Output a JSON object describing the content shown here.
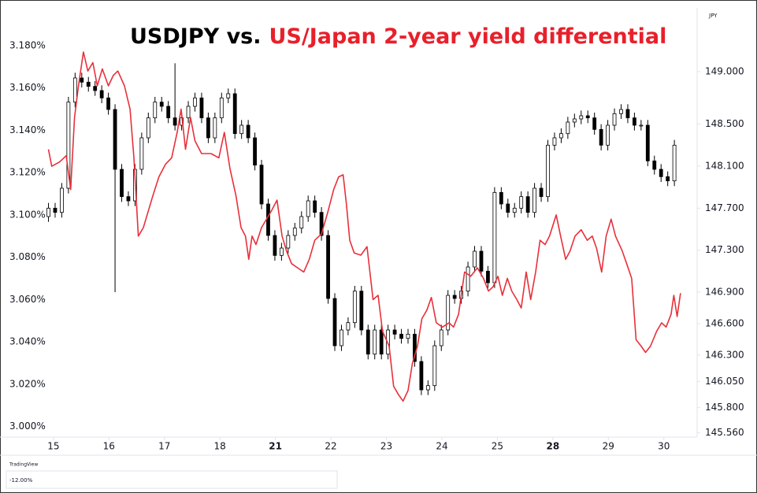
{
  "chart_data": {
    "type": "candlestick",
    "title_parts": [
      {
        "text": "USDJPY vs.",
        "color": "#000000"
      },
      {
        "text": "US/Japan 2-year yield differential",
        "color": "#e8202a"
      }
    ],
    "y2_unit": "JPY",
    "xlim": [
      -0.14,
      11.6
    ],
    "xticks": [
      {
        "value": 0,
        "label": "15"
      },
      {
        "value": 1,
        "label": "16"
      },
      {
        "value": 2,
        "label": "17"
      },
      {
        "value": 3,
        "label": "18"
      },
      {
        "value": 4,
        "label": "21",
        "bold": true
      },
      {
        "value": 5,
        "label": "22"
      },
      {
        "value": 6,
        "label": "23"
      },
      {
        "value": 7,
        "label": "24"
      },
      {
        "value": 8,
        "label": "25"
      },
      {
        "value": 9,
        "label": "28",
        "bold": true
      },
      {
        "value": 10,
        "label": "29"
      },
      {
        "value": 11,
        "label": "30"
      }
    ],
    "ylim": [
      2.995,
      3.196
    ],
    "yticks": [
      {
        "value": 3.0,
        "label": "3.000%"
      },
      {
        "value": 3.02,
        "label": "3.020%"
      },
      {
        "value": 3.04,
        "label": "3.040%"
      },
      {
        "value": 3.06,
        "label": "3.060%"
      },
      {
        "value": 3.08,
        "label": "3.080%"
      },
      {
        "value": 3.1,
        "label": "3.100%"
      },
      {
        "value": 3.12,
        "label": "3.120%"
      },
      {
        "value": 3.14,
        "label": "3.140%"
      },
      {
        "value": 3.16,
        "label": "3.160%"
      },
      {
        "value": 3.18,
        "label": "3.180%"
      }
    ],
    "y2lim": [
      145.52,
      149.57
    ],
    "y2ticks": [
      {
        "value": 145.56,
        "label": "145.560"
      },
      {
        "value": 145.8,
        "label": "145.800"
      },
      {
        "value": 146.05,
        "label": "146.050"
      },
      {
        "value": 146.3,
        "label": "146.300"
      },
      {
        "value": 146.6,
        "label": "146.600"
      },
      {
        "value": 146.9,
        "label": "146.900"
      },
      {
        "value": 147.3,
        "label": "147.300"
      },
      {
        "value": 147.7,
        "label": "147.700"
      },
      {
        "value": 148.1,
        "label": "148.100"
      },
      {
        "value": 148.5,
        "label": "148.500"
      },
      {
        "value": 149.0,
        "label": "149.000"
      }
    ],
    "series": [
      {
        "type": "candlestick",
        "axis": "y2",
        "up_color": "#ffffff",
        "down_color": "#000000",
        "edge_color": "#000000",
        "x": [
          -0.09,
          0.03,
          0.15,
          0.27,
          0.39,
          0.51,
          0.63,
          0.75,
          0.87,
          0.99,
          1.11,
          1.23,
          1.35,
          1.47,
          1.59,
          1.71,
          1.83,
          1.95,
          2.07,
          2.19,
          2.31,
          2.43,
          2.55,
          2.67,
          2.79,
          2.91,
          3.03,
          3.15,
          3.27,
          3.39,
          3.51,
          3.63,
          3.75,
          3.87,
          3.99,
          4.11,
          4.23,
          4.35,
          4.47,
          4.59,
          4.71,
          4.83,
          4.95,
          5.07,
          5.19,
          5.31,
          5.43,
          5.55,
          5.67,
          5.79,
          5.91,
          6.03,
          6.15,
          6.27,
          6.39,
          6.51,
          6.63,
          6.75,
          6.87,
          6.99,
          7.11,
          7.23,
          7.35,
          7.47,
          7.59,
          7.71,
          7.83,
          7.95,
          8.07,
          8.19,
          8.31,
          8.43,
          8.55,
          8.67,
          8.79,
          8.91,
          9.03,
          9.15,
          9.27,
          9.39,
          9.51,
          9.63,
          9.75,
          9.87,
          9.99,
          10.11,
          10.23,
          10.35,
          10.47,
          10.59,
          10.71,
          10.83,
          10.95,
          11.07,
          11.19
        ],
        "open": [
          147.62,
          147.7,
          147.66,
          147.89,
          148.71,
          148.94,
          148.9,
          148.86,
          148.82,
          148.75,
          148.64,
          148.07,
          147.81,
          147.77,
          148.07,
          148.37,
          148.56,
          148.71,
          148.67,
          148.56,
          148.49,
          148.56,
          148.67,
          148.75,
          148.56,
          148.37,
          148.56,
          148.75,
          148.79,
          148.41,
          148.49,
          148.37,
          148.11,
          147.74,
          147.44,
          147.25,
          147.32,
          147.44,
          147.51,
          147.62,
          147.77,
          147.66,
          147.44,
          146.84,
          146.39,
          146.54,
          146.61,
          146.91,
          146.54,
          146.31,
          146.54,
          146.31,
          146.54,
          146.5,
          146.46,
          146.5,
          146.24,
          145.97,
          146.01,
          146.39,
          146.54,
          146.87,
          146.84,
          146.91,
          147.14,
          147.29,
          147.1,
          146.99,
          147.85,
          147.74,
          147.66,
          147.7,
          147.81,
          147.66,
          147.89,
          147.81,
          148.3,
          148.37,
          148.41,
          148.52,
          148.55,
          148.58,
          148.56,
          148.45,
          148.3,
          148.49,
          148.6,
          148.64,
          148.56,
          148.49,
          148.49,
          148.15,
          148.07,
          148.0,
          147.96
        ],
        "high": [
          147.75,
          147.75,
          147.94,
          148.76,
          148.99,
          148.99,
          148.95,
          148.91,
          148.87,
          148.8,
          148.69,
          148.12,
          147.86,
          148.12,
          148.42,
          148.61,
          148.76,
          148.76,
          148.72,
          149.08,
          148.61,
          148.72,
          148.8,
          148.8,
          148.61,
          148.61,
          148.8,
          148.84,
          148.84,
          148.54,
          148.54,
          148.42,
          148.16,
          147.79,
          147.49,
          147.37,
          147.49,
          147.56,
          147.67,
          147.82,
          147.82,
          147.71,
          147.49,
          146.89,
          146.59,
          146.66,
          146.96,
          146.96,
          146.59,
          146.59,
          146.59,
          146.59,
          146.59,
          146.55,
          146.55,
          146.55,
          146.29,
          146.06,
          146.44,
          146.59,
          146.92,
          146.92,
          146.96,
          147.19,
          147.34,
          147.34,
          147.15,
          147.9,
          147.9,
          147.79,
          147.75,
          147.86,
          147.86,
          147.94,
          147.94,
          148.35,
          148.42,
          148.46,
          148.57,
          148.6,
          148.63,
          148.63,
          148.61,
          148.5,
          148.54,
          148.65,
          148.69,
          148.69,
          148.61,
          148.54,
          148.54,
          148.2,
          148.12,
          148.05,
          148.35
        ],
        "low": [
          147.57,
          147.61,
          147.61,
          147.84,
          148.66,
          148.85,
          148.81,
          148.77,
          148.7,
          148.59,
          146.9,
          147.76,
          147.72,
          147.72,
          148.02,
          148.32,
          148.51,
          148.62,
          148.51,
          148.44,
          148.44,
          148.51,
          148.62,
          148.51,
          148.32,
          148.32,
          148.51,
          148.7,
          148.36,
          148.36,
          148.32,
          148.06,
          147.69,
          147.39,
          147.2,
          147.2,
          147.27,
          147.39,
          147.46,
          147.57,
          147.61,
          147.39,
          146.79,
          146.34,
          146.34,
          146.49,
          146.56,
          146.49,
          146.26,
          146.26,
          146.26,
          146.26,
          146.45,
          146.41,
          146.41,
          146.19,
          145.92,
          145.92,
          145.96,
          146.34,
          146.49,
          146.79,
          146.79,
          146.86,
          147.09,
          147.05,
          146.94,
          146.94,
          147.69,
          147.61,
          147.61,
          147.65,
          147.61,
          147.61,
          147.76,
          147.76,
          148.25,
          148.32,
          148.36,
          148.47,
          148.5,
          148.51,
          148.4,
          148.25,
          148.25,
          148.44,
          148.55,
          148.51,
          148.44,
          148.44,
          148.1,
          148.02,
          147.95,
          147.91,
          147.91
        ],
        "close": [
          147.7,
          147.66,
          147.89,
          148.71,
          148.94,
          148.9,
          148.86,
          148.82,
          148.75,
          148.64,
          148.07,
          147.81,
          147.77,
          148.07,
          148.37,
          148.56,
          148.71,
          148.67,
          148.56,
          148.49,
          148.56,
          148.67,
          148.75,
          148.56,
          148.37,
          148.56,
          148.75,
          148.79,
          148.41,
          148.49,
          148.37,
          148.11,
          147.74,
          147.44,
          147.25,
          147.32,
          147.44,
          147.51,
          147.62,
          147.77,
          147.66,
          147.44,
          146.84,
          146.39,
          146.54,
          146.61,
          146.91,
          146.54,
          146.31,
          146.54,
          146.31,
          146.54,
          146.5,
          146.46,
          146.5,
          146.24,
          145.97,
          146.01,
          146.39,
          146.54,
          146.87,
          146.84,
          146.91,
          147.14,
          147.29,
          147.1,
          146.99,
          147.85,
          147.74,
          147.66,
          147.7,
          147.81,
          147.66,
          147.89,
          147.81,
          148.3,
          148.37,
          148.41,
          148.52,
          148.55,
          148.58,
          148.56,
          148.45,
          148.3,
          148.49,
          148.6,
          148.64,
          148.56,
          148.49,
          148.49,
          148.15,
          148.07,
          148.0,
          147.96,
          148.3
        ]
      },
      {
        "type": "line",
        "color": "#e8303a",
        "x": [
          -0.09,
          -0.03,
          0.11,
          0.23,
          0.31,
          0.38,
          0.45,
          0.54,
          0.62,
          0.71,
          0.79,
          0.88,
          0.99,
          1.08,
          1.16,
          1.28,
          1.38,
          1.45,
          1.53,
          1.62,
          1.7,
          1.79,
          1.9,
          2.02,
          2.13,
          2.23,
          2.3,
          2.38,
          2.47,
          2.55,
          2.67,
          2.84,
          2.98,
          3.08,
          3.18,
          3.29,
          3.38,
          3.46,
          3.52,
          3.58,
          3.65,
          3.75,
          3.93,
          4.03,
          4.12,
          4.2,
          4.29,
          4.4,
          4.51,
          4.61,
          4.71,
          4.83,
          4.94,
          5.05,
          5.14,
          5.22,
          5.28,
          5.34,
          5.42,
          5.54,
          5.65,
          5.76,
          5.85,
          5.93,
          6.05,
          6.13,
          6.22,
          6.3,
          6.39,
          6.47,
          6.56,
          6.64,
          6.73,
          6.81,
          6.9,
          7.01,
          7.13,
          7.21,
          7.3,
          7.41,
          7.52,
          7.64,
          7.75,
          7.84,
          7.92,
          8.01,
          8.09,
          8.18,
          8.26,
          8.35,
          8.43,
          8.52,
          8.6,
          8.69,
          8.77,
          8.86,
          8.94,
          9.06,
          9.14,
          9.23,
          9.31,
          9.4,
          9.51,
          9.62,
          9.71,
          9.79,
          9.88,
          9.96,
          10.05,
          10.13,
          10.25,
          10.33,
          10.42,
          10.5,
          10.59,
          10.67,
          10.76,
          10.87,
          10.96,
          11.04,
          11.13,
          11.18,
          11.24,
          11.3
        ],
        "values": [
          3.131,
          3.123,
          3.125,
          3.128,
          3.112,
          3.146,
          3.161,
          3.177,
          3.168,
          3.172,
          3.161,
          3.169,
          3.161,
          3.166,
          3.168,
          3.161,
          3.15,
          3.127,
          3.09,
          3.094,
          3.101,
          3.109,
          3.118,
          3.124,
          3.127,
          3.139,
          3.15,
          3.131,
          3.146,
          3.135,
          3.129,
          3.129,
          3.127,
          3.139,
          3.122,
          3.109,
          3.094,
          3.09,
          3.079,
          3.09,
          3.086,
          3.094,
          3.102,
          3.107,
          3.09,
          3.083,
          3.077,
          3.075,
          3.073,
          3.079,
          3.088,
          3.091,
          3.101,
          3.112,
          3.118,
          3.119,
          3.105,
          3.088,
          3.082,
          3.081,
          3.085,
          3.06,
          3.062,
          3.045,
          3.038,
          3.019,
          3.015,
          3.012,
          3.017,
          3.03,
          3.038,
          3.051,
          3.055,
          3.061,
          3.049,
          3.047,
          3.049,
          3.047,
          3.053,
          3.073,
          3.071,
          3.075,
          3.07,
          3.064,
          3.066,
          3.071,
          3.062,
          3.07,
          3.064,
          3.06,
          3.056,
          3.073,
          3.06,
          3.073,
          3.088,
          3.086,
          3.09,
          3.1,
          3.09,
          3.079,
          3.083,
          3.09,
          3.093,
          3.088,
          3.09,
          3.084,
          3.073,
          3.09,
          3.098,
          3.09,
          3.083,
          3.077,
          3.07,
          3.041,
          3.038,
          3.035,
          3.038,
          3.045,
          3.049,
          3.047,
          3.053,
          3.062,
          3.052,
          3.063
        ]
      }
    ],
    "footer": {
      "logo": "TradingView",
      "pane_label": "-12.00%"
    }
  }
}
